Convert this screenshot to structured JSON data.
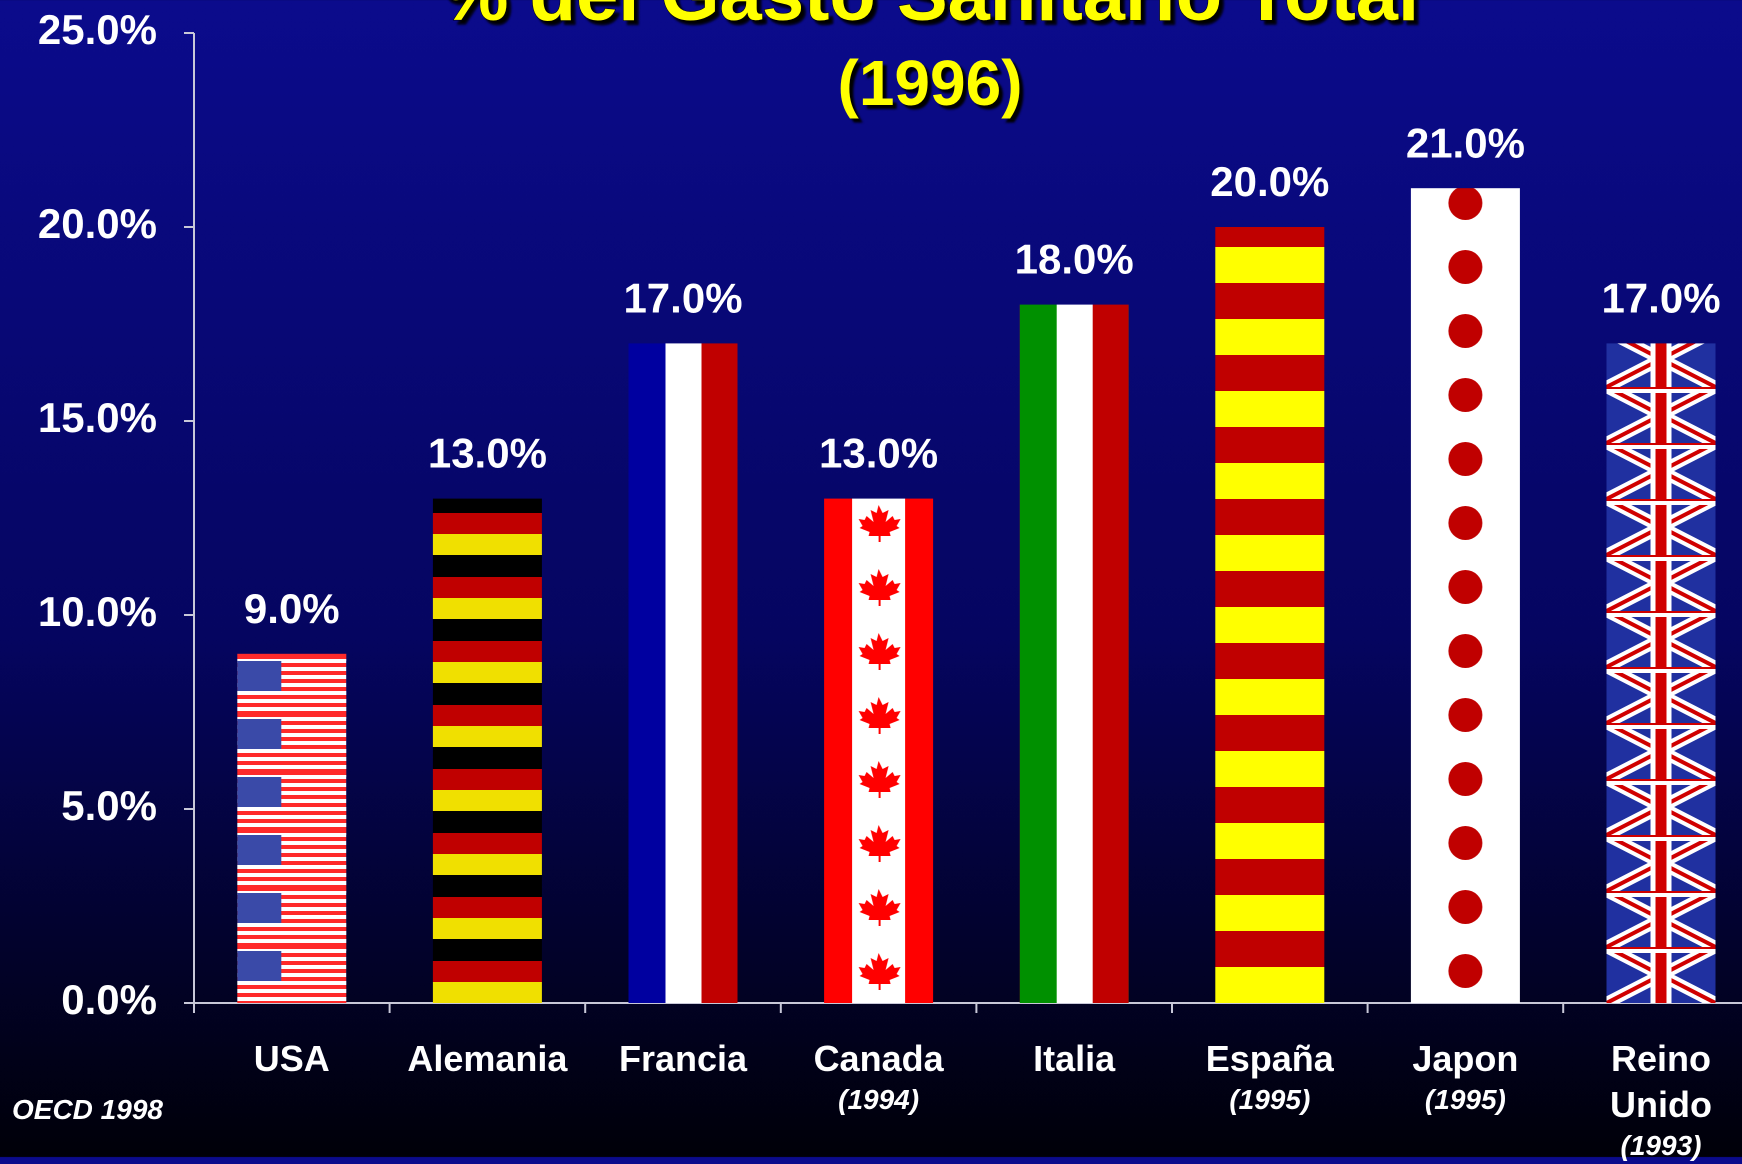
{
  "chart_data": {
    "type": "bar",
    "title": "% del Gasto Sanitario Total",
    "subtitle": "(1996)",
    "categories": [
      "USA",
      "Alemania",
      "Francia",
      "Canada",
      "Italia",
      "España",
      "Japon",
      "Reino Unido"
    ],
    "category_notes": [
      null,
      null,
      null,
      "(1994)",
      null,
      "(1995)",
      "(1995)",
      "(1993)"
    ],
    "values": [
      9,
      13,
      17,
      13,
      18,
      20,
      21,
      17
    ],
    "value_labels": [
      "9.0%",
      "13.0%",
      "17.0%",
      "13.0%",
      "18.0%",
      "20.0%",
      "21.0%",
      "17.0%"
    ],
    "ylim": [
      0,
      25
    ],
    "yticks": [
      {
        "value": 0,
        "label": "0.0%"
      },
      {
        "value": 5,
        "label": "5.0%"
      },
      {
        "value": 10,
        "label": "10.0%"
      },
      {
        "value": 15,
        "label": "15.0%"
      },
      {
        "value": 20,
        "label": "20.0%"
      },
      {
        "value": 25,
        "label": "25.0%"
      }
    ],
    "source": "OECD 1998"
  }
}
